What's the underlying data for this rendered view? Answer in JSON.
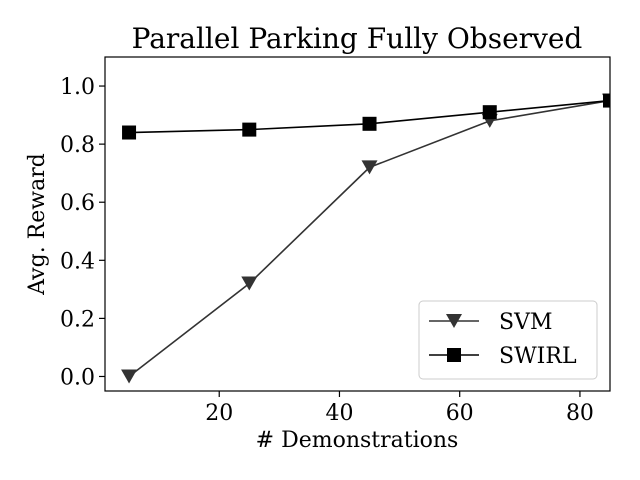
{
  "chart_data": {
    "type": "line",
    "title": "Parallel Parking Fully Observed",
    "xlabel": "# Demonstrations",
    "ylabel": "Avg. Reward",
    "xlim": [
      1,
      85
    ],
    "ylim": [
      -0.05,
      1.1
    ],
    "xticks": [
      20,
      40,
      60,
      80
    ],
    "xtick_labels": [
      "20",
      "40",
      "60",
      "80"
    ],
    "yticks": [
      0.0,
      0.2,
      0.4,
      0.6,
      0.8,
      1.0
    ],
    "ytick_labels": [
      "0.0",
      "0.2",
      "0.4",
      "0.6",
      "0.8",
      "1.0"
    ],
    "grid": false,
    "legend_position": "bottom-right",
    "x": [
      5,
      25,
      45,
      65,
      85
    ],
    "series": [
      {
        "name": "SVM",
        "marker": "triangle-down",
        "color": "#333333",
        "values": [
          0.0,
          0.32,
          0.72,
          0.88,
          0.95
        ]
      },
      {
        "name": "SWIRL",
        "marker": "square",
        "color": "#000000",
        "values": [
          0.84,
          0.85,
          0.87,
          0.91,
          0.95
        ]
      }
    ]
  }
}
